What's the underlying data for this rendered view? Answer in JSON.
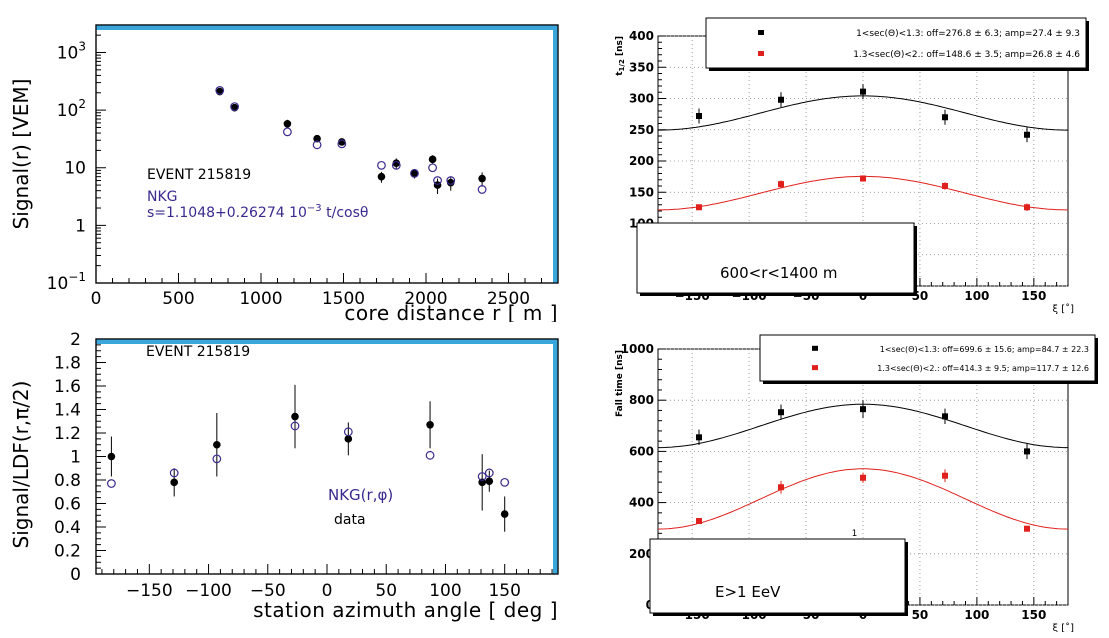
{
  "chart_data": [
    {
      "id": "tl",
      "type": "scatter",
      "ylabel": "Signal(r) [VEM]",
      "xlabel": "core distance r [ m ]",
      "xlim": [
        0,
        2800
      ],
      "ylim": [
        0.1,
        3000
      ],
      "log_y": true,
      "x_ticks": [
        0,
        500,
        1000,
        1500,
        2000,
        2500
      ],
      "y_tick_labels": [
        {
          "v": 0.1,
          "base": "10",
          "exp": "−1"
        },
        {
          "v": 1,
          "base": "1",
          "exp": ""
        },
        {
          "v": 10,
          "base": "10",
          "exp": ""
        },
        {
          "v": 100,
          "base": "10",
          "exp": "2"
        },
        {
          "v": 1000,
          "base": "10",
          "exp": "3"
        }
      ],
      "annotations": {
        "event": "EVENT 215819",
        "model": "NKG",
        "formula": "s=1.1048+0.26274 10",
        "formula_exp": "−3",
        "formula_tail": " t/cosθ"
      },
      "series": [
        {
          "marker": "filled",
          "points": [
            {
              "x": 750,
              "y": 210
            },
            {
              "x": 840,
              "y": 110
            },
            {
              "x": 1160,
              "y": 58,
              "e": 10
            },
            {
              "x": 1340,
              "y": 32,
              "e": 4
            },
            {
              "x": 1490,
              "y": 28,
              "e": 3
            },
            {
              "x": 1730,
              "y": 7,
              "e": 1.5
            },
            {
              "x": 1820,
              "y": 12,
              "e": 2.5
            },
            {
              "x": 1930,
              "y": 8,
              "e": 1.5
            },
            {
              "x": 2040,
              "y": 14,
              "e": 2.5
            },
            {
              "x": 2070,
              "y": 5,
              "e": 1.5
            },
            {
              "x": 2150,
              "y": 5.5,
              "e": 1.5
            },
            {
              "x": 2340,
              "y": 6.5,
              "e": 1.8
            }
          ]
        },
        {
          "marker": "open",
          "points": [
            {
              "x": 750,
              "y": 220
            },
            {
              "x": 840,
              "y": 115
            },
            {
              "x": 1160,
              "y": 42
            },
            {
              "x": 1340,
              "y": 25
            },
            {
              "x": 1490,
              "y": 26
            },
            {
              "x": 1730,
              "y": 11
            },
            {
              "x": 1820,
              "y": 11
            },
            {
              "x": 1930,
              "y": 8
            },
            {
              "x": 2040,
              "y": 10
            },
            {
              "x": 2070,
              "y": 6
            },
            {
              "x": 2150,
              "y": 6
            },
            {
              "x": 2340,
              "y": 4.2
            }
          ]
        }
      ]
    },
    {
      "id": "bl",
      "type": "scatter",
      "ylabel": "Signal/LDF(r,π/2)",
      "xlabel": "station azimuth angle [ deg ]",
      "xlim": [
        -195,
        195
      ],
      "ylim": [
        0,
        2
      ],
      "x_ticks": [
        -150,
        -100,
        -50,
        0,
        50,
        100,
        150
      ],
      "y_ticks": [
        0,
        0.2,
        0.4,
        0.6,
        0.8,
        1,
        1.2,
        1.4,
        1.6,
        1.8,
        2
      ],
      "annotations": {
        "event": "EVENT 215819",
        "model": "NKG(r,φ)",
        "data_label": "data"
      },
      "series": [
        {
          "marker": "filled",
          "points": [
            {
              "x": -182,
              "y": 1.0,
              "e": 0.17
            },
            {
              "x": -129,
              "y": 0.78,
              "e": 0.12
            },
            {
              "x": -93,
              "y": 1.1,
              "e": 0.27
            },
            {
              "x": -27,
              "y": 1.34,
              "e": 0.27
            },
            {
              "x": 18,
              "y": 1.15,
              "e": 0.14
            },
            {
              "x": 87,
              "y": 1.27,
              "e": 0.2
            },
            {
              "x": 131,
              "y": 0.78,
              "e": 0.24
            },
            {
              "x": 137,
              "y": 0.79,
              "e": 0.09
            },
            {
              "x": 150,
              "y": 0.51,
              "e": 0.15
            }
          ]
        },
        {
          "marker": "open",
          "points": [
            {
              "x": -182,
              "y": 0.77
            },
            {
              "x": -129,
              "y": 0.86
            },
            {
              "x": -93,
              "y": 0.98
            },
            {
              "x": -27,
              "y": 1.26
            },
            {
              "x": 18,
              "y": 1.21
            },
            {
              "x": 87,
              "y": 1.01
            },
            {
              "x": 131,
              "y": 0.83
            },
            {
              "x": 137,
              "y": 0.86
            },
            {
              "x": 150,
              "y": 0.78
            }
          ]
        }
      ]
    },
    {
      "id": "tr",
      "type": "scatter",
      "ylabel": "t",
      "ylabel_sub": "1/2",
      "ylabel_tail": " [ns]",
      "xlabel": "ξ [˚]",
      "xlim": [
        -180,
        180
      ],
      "ylim": [
        0,
        400
      ],
      "x_ticks": [
        -150,
        -100,
        -50,
        0,
        50,
        100,
        150
      ],
      "y_ticks": [
        0,
        50,
        100,
        150,
        200,
        250,
        300,
        350,
        400
      ],
      "legend": [
        {
          "color": "#000000",
          "text": "1<sec(Θ)<1.3: off=276.8 ± 6.3; amp=27.4 ± 9.3"
        },
        {
          "color": "#e0201c",
          "text": "1.3<sec(Θ)<2.: off=148.6 ± 3.5; amp=26.8 ± 4.6"
        }
      ],
      "textbox": [
        "E>1 EeV",
        "600<r<1400 m"
      ],
      "fits": [
        {
          "color": "#000000",
          "off": 276.8,
          "amp": 27.4
        },
        {
          "color": "#e0201c",
          "off": 148.6,
          "amp": 26.8
        }
      ],
      "series": [
        {
          "color": "#000000",
          "points": [
            {
              "x": -144,
              "y": 272,
              "e": 12
            },
            {
              "x": -72,
              "y": 298,
              "e": 12
            },
            {
              "x": 0,
              "y": 311,
              "e": 12
            },
            {
              "x": 72,
              "y": 270,
              "e": 12
            },
            {
              "x": 144,
              "y": 242,
              "e": 12
            }
          ]
        },
        {
          "color": "#e0201c",
          "points": [
            {
              "x": -144,
              "y": 126,
              "e": 4
            },
            {
              "x": -72,
              "y": 163,
              "e": 6
            },
            {
              "x": 0,
              "y": 172,
              "e": 5
            },
            {
              "x": 72,
              "y": 160,
              "e": 6
            },
            {
              "x": 144,
              "y": 126,
              "e": 6
            }
          ]
        }
      ]
    },
    {
      "id": "br",
      "type": "scatter",
      "ylabel": "Fall time [ns]",
      "xlabel": "ξ [˚]",
      "xlim": [
        -180,
        180
      ],
      "ylim": [
        0,
        1000
      ],
      "x_ticks": [
        -150,
        -100,
        -50,
        0,
        50,
        100,
        150
      ],
      "y_ticks": [
        0,
        200,
        400,
        600,
        800,
        1000
      ],
      "legend": [
        {
          "color": "#000000",
          "text": "1<sec(Θ)<1.3: off=699.6 ± 15.6; amp=84.7 ± 22.3"
        },
        {
          "color": "#e0201c",
          "text": "1.3<sec(Θ)<2.: off=414.3 ± 9.5; amp=117.7 ± 12.6"
        }
      ],
      "textbox": [
        "600<r<1400 m",
        "E>1 EeV"
      ],
      "stray_label": "1",
      "fits": [
        {
          "color": "#000000",
          "off": 699.6,
          "amp": 84.7
        },
        {
          "color": "#e0201c",
          "off": 414.3,
          "amp": 117.7
        }
      ],
      "series": [
        {
          "color": "#000000",
          "points": [
            {
              "x": -144,
              "y": 655,
              "e": 30
            },
            {
              "x": -72,
              "y": 753,
              "e": 30
            },
            {
              "x": 0,
              "y": 765,
              "e": 35
            },
            {
              "x": 72,
              "y": 737,
              "e": 30
            },
            {
              "x": 144,
              "y": 600,
              "e": 30
            }
          ]
        },
        {
          "color": "#e0201c",
          "points": [
            {
              "x": -144,
              "y": 328,
              "e": 8
            },
            {
              "x": -72,
              "y": 460,
              "e": 25
            },
            {
              "x": 0,
              "y": 497,
              "e": 20
            },
            {
              "x": 72,
              "y": 505,
              "e": 25
            },
            {
              "x": 144,
              "y": 298,
              "e": 8
            }
          ]
        }
      ]
    }
  ]
}
